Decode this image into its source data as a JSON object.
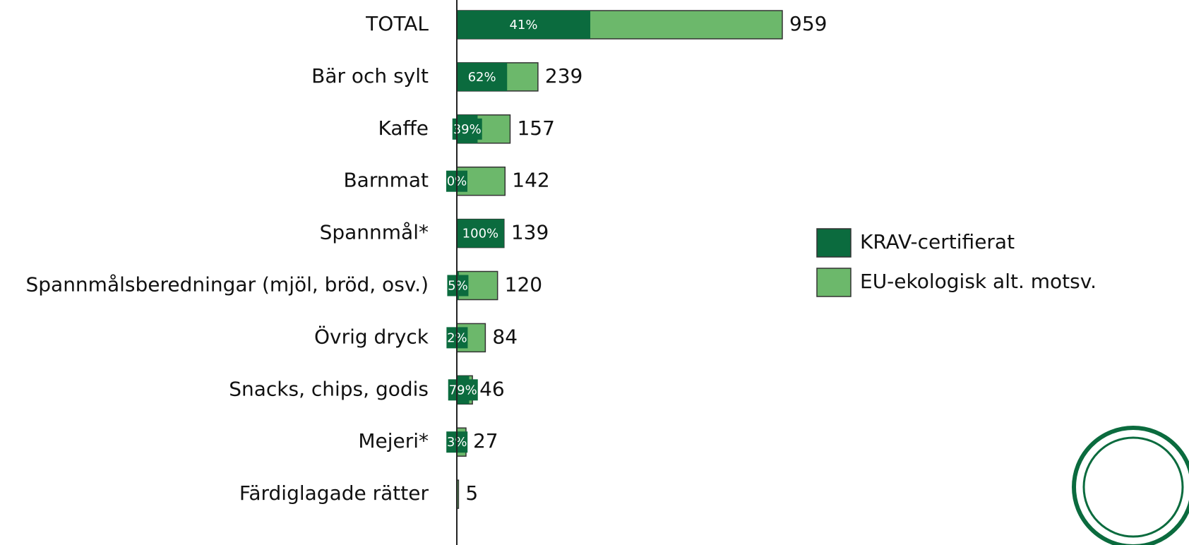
{
  "chart_data": {
    "type": "bar",
    "categories": [
      "TOTAL",
      "Bär och sylt",
      "Kaffe",
      "Barnmat",
      "Spannmål*",
      "Spannmålsberedningar (mjöl, bröd, osv.)",
      "Övrig dryck",
      "Snacks, chips, godis",
      "Mejeri*",
      "Färdiglagade rätter"
    ],
    "totals": [
      959,
      239,
      157,
      142,
      139,
      120,
      84,
      46,
      27,
      5
    ],
    "series": [
      {
        "name": "KRAV-certifierat",
        "color": "#0b6b3e",
        "values": [
          41,
          62,
          39,
          0,
          100,
          5,
          2,
          79,
          3,
          null
        ],
        "value_labels": [
          "41%",
          "62%",
          "39%",
          "0%",
          "100%",
          "5%",
          "2%",
          "79%",
          "3%",
          null
        ]
      },
      {
        "name": "EU-ekologisk alt. motsv.",
        "color": "#6cb86b"
      }
    ],
    "legend": "right"
  }
}
